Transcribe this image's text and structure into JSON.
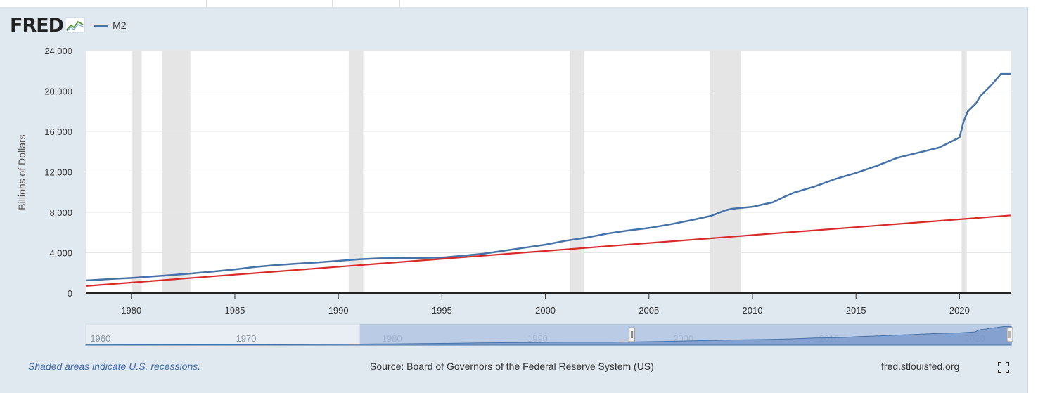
{
  "header": {
    "logo_text": "FRED",
    "legend_label": "M2"
  },
  "footer": {
    "note": "Shaded areas indicate U.S. recessions.",
    "source": "Source: Board of Governors of the Federal Reserve System (US)",
    "site": "fred.stlouisfed.org"
  },
  "colors": {
    "series": "#4572a7",
    "trend": "#d92a2a",
    "recession": "#e5e5e5",
    "navigator_fill": "#a9bfe0"
  },
  "chart_data": {
    "type": "line",
    "xlabel": "",
    "ylabel": "Billions of Dollars",
    "xlim": [
      1977.8,
      2022.5
    ],
    "ylim": [
      0,
      24000
    ],
    "y_ticks": [
      "0",
      "4,000",
      "8,000",
      "12,000",
      "16,000",
      "20,000",
      "24,000"
    ],
    "x_ticks": [
      "1980",
      "1985",
      "1990",
      "1995",
      "2000",
      "2005",
      "2010",
      "2015",
      "2020"
    ],
    "recessions": [
      [
        1980.0,
        1980.5
      ],
      [
        1981.5,
        1982.85
      ],
      [
        1990.5,
        1991.2
      ],
      [
        2001.2,
        2001.85
      ],
      [
        2007.95,
        2009.45
      ],
      [
        2020.1,
        2020.35
      ]
    ],
    "series": [
      {
        "name": "M2",
        "x": [
          1977.8,
          1979,
          1980,
          1981,
          1982,
          1982.9,
          1984,
          1985,
          1986,
          1987,
          1988,
          1989,
          1990,
          1991,
          1992,
          1993,
          1994,
          1995,
          1996,
          1997,
          1998,
          1999,
          2000,
          2001,
          2002,
          2003,
          2004,
          2005,
          2006,
          2007,
          2008,
          2008.7,
          2009,
          2010,
          2011,
          2011.5,
          2012,
          2013,
          2014,
          2015,
          2016,
          2017,
          2018,
          2019,
          2020.0,
          2020.2,
          2020.4,
          2020.8,
          2021,
          2021.5,
          2022,
          2022.5
        ],
        "values": [
          1250,
          1400,
          1500,
          1650,
          1800,
          1950,
          2150,
          2350,
          2600,
          2780,
          2920,
          3050,
          3200,
          3350,
          3450,
          3470,
          3500,
          3520,
          3700,
          3900,
          4200,
          4500,
          4800,
          5200,
          5500,
          5900,
          6200,
          6450,
          6800,
          7200,
          7650,
          8200,
          8350,
          8550,
          9000,
          9500,
          9950,
          10550,
          11300,
          11900,
          12600,
          13400,
          13900,
          14400,
          15400,
          17000,
          18000,
          18800,
          19500,
          20500,
          21700,
          21700
        ]
      },
      {
        "name": "",
        "x": [
          1977.8,
          2022.5
        ],
        "values": [
          700,
          7700
        ]
      }
    ],
    "navigator": {
      "xlim": [
        1959,
        2022.5
      ],
      "x_ticks": [
        "1960",
        "1970",
        "1980",
        "1990",
        "2000",
        "2010",
        "2020"
      ],
      "selection": [
        1977.8,
        2022.5
      ]
    }
  }
}
